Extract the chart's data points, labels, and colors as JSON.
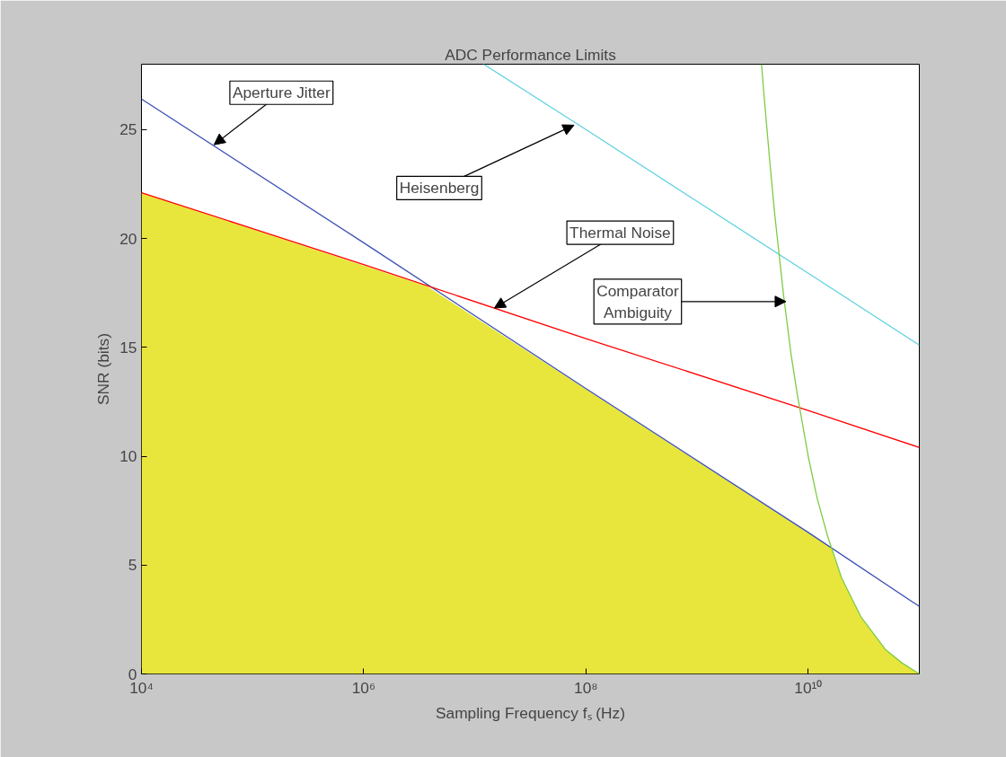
{
  "chart_data": {
    "type": "line",
    "title": "ADC Performance Limits",
    "xlabel": "Sampling Frequency fₛ (Hz)",
    "ylabel": "SNR (bits)",
    "log": "x",
    "grid": false,
    "xlim": [
      10000,
      100000000000
    ],
    "ylim": [
      0,
      28
    ],
    "xticks": [
      {
        "value": 10000,
        "label": "10⁴"
      },
      {
        "value": 1000000,
        "label": "10⁶"
      },
      {
        "value": 100000000,
        "label": "10⁸"
      },
      {
        "value": 10000000000,
        "label": "10¹⁰"
      }
    ],
    "yticks": [
      0,
      5,
      10,
      15,
      20,
      25
    ],
    "series": [
      {
        "type": "area",
        "color": "#e8e63c",
        "x": [
          10000,
          3700000,
          16000000000,
          20000000000,
          30000000000,
          50000000000,
          70000000000,
          100000000000
        ],
        "values": [
          22.1,
          17.8,
          5.8,
          4.4,
          2.6,
          1.1,
          0.5,
          0
        ]
      },
      {
        "color": "#3c50b4",
        "x": [
          10000,
          1000000,
          100000000,
          10000000000,
          100000000000
        ],
        "values": [
          26.4,
          19.8,
          13.1,
          6.5,
          3.1
        ]
      },
      {
        "color": "#ff0000",
        "x": [
          10000,
          1000000,
          100000000,
          10000000000,
          100000000000
        ],
        "values": [
          22.1,
          18.8,
          15.4,
          12.1,
          10.4
        ]
      },
      {
        "color": "#5fd2e0",
        "x": [
          12000000,
          100000000,
          1000000000,
          10000000000,
          100000000000
        ],
        "values": [
          28,
          25.0,
          21.7,
          18.4,
          15.1
        ]
      },
      {
        "color": "#7ccc44",
        "x": [
          3800000000,
          4000000000,
          4500000000,
          5000000000,
          6000000000,
          7000000000,
          8000000000,
          10000000000,
          12000000000,
          15000000000,
          20000000000,
          30000000000,
          50000000000,
          70000000000,
          100000000000
        ],
        "values": [
          28,
          26.6,
          23.6,
          21.1,
          17.4,
          14.7,
          12.8,
          10.0,
          8.1,
          6.3,
          4.4,
          2.6,
          1.1,
          0.5,
          0
        ]
      }
    ],
    "annotations": [
      {
        "text": "Aperture Jitter",
        "x": 45000,
        "y": 24.3
      },
      {
        "text": "Heisenberg",
        "x": 78000000,
        "y": 25.2
      },
      {
        "text": "Thermal Noise",
        "x": 15000000,
        "y": 16.8
      },
      {
        "text": "Comparator\nAmbiguity",
        "x": 6300000000,
        "y": 17.1
      }
    ]
  }
}
